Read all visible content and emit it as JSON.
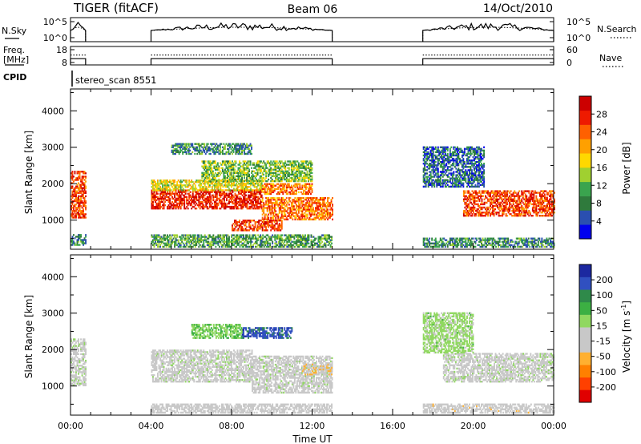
{
  "header": {
    "title": "TIGER (fitACF)",
    "beam": "Beam 06",
    "date": "14/Oct/2010"
  },
  "labels": {
    "nsky": "N.Sky",
    "nsearch": "N.Search",
    "freq_line1": "Freq.",
    "freq_line2": "[MHz]",
    "nave": "Nave",
    "cpid": "CPID",
    "cpid_value": "stereo_scan 8551",
    "slant_range": "Slant Range [km]",
    "power": "Power [dB]",
    "velocity_main": "Velocity [m s",
    "velocity_exp": "-1",
    "velocity_close": "]",
    "time_ut": "Time UT"
  },
  "colors": {
    "power_scale": [
      "#0000ee",
      "#2a4fb0",
      "#2f7a3c",
      "#3aa44e",
      "#a0d030",
      "#ffd800",
      "#ffa000",
      "#ff6000",
      "#ee1a00",
      "#cc0000"
    ],
    "velocity_scale": [
      "#e00000",
      "#ff4000",
      "#ff8000",
      "#ffb030",
      "#c8c8c8",
      "#c8c8c8",
      "#90d860",
      "#3cb043",
      "#2f8a4a",
      "#3050c0",
      "#1c28a0"
    ],
    "ground_scatter": "#c8c8c8"
  },
  "chart_data": [
    {
      "type": "line",
      "panel": "noise",
      "left_axis": {
        "ticks": [
          "10^5",
          "10^0"
        ]
      },
      "right_axis": {
        "ticks": [
          "10^5",
          "10^0"
        ]
      },
      "series": [
        {
          "name": "N.Sky",
          "style": "solid",
          "segments": [
            {
              "x": [
                0.0,
                0.75
              ],
              "level": "high"
            },
            {
              "x": [
                4.0,
                13.0
              ],
              "level": "high"
            },
            {
              "x": [
                17.5,
                24.0
              ],
              "level": "high"
            }
          ]
        },
        {
          "name": "N.Search",
          "style": "dotted",
          "segments": [
            {
              "x": [
                0.0,
                0.75
              ],
              "level": "high"
            },
            {
              "x": [
                4.0,
                13.0
              ],
              "level": "high"
            },
            {
              "x": [
                17.5,
                24.0
              ],
              "level": "high"
            }
          ]
        }
      ]
    },
    {
      "type": "line",
      "panel": "frequency",
      "left_axis": {
        "ticks": [
          "18",
          "8"
        ]
      },
      "right_axis": {
        "ticks": [
          "60",
          "0"
        ]
      },
      "series": [
        {
          "name": "Freq.",
          "style": "solid",
          "value": 11,
          "segments": [
            [
              0.0,
              0.75
            ],
            [
              4.0,
              13.0
            ],
            [
              17.5,
              24.0
            ]
          ]
        },
        {
          "name": "Nave",
          "style": "dotted",
          "value": 35,
          "segments": [
            [
              0.0,
              0.75
            ],
            [
              4.0,
              13.0
            ],
            [
              17.5,
              24.0
            ]
          ]
        }
      ]
    },
    {
      "type": "heatmap",
      "panel": "power",
      "ylabel": "Slant Range [km]",
      "yticks": [
        1000,
        2000,
        3000,
        4000
      ],
      "ylim": [
        200,
        4600
      ],
      "xlim": [
        0,
        24
      ],
      "colorbar": {
        "label": "Power [dB]",
        "ticks": [
          "28",
          "24",
          "20",
          "16",
          "12",
          "8",
          "4"
        ],
        "range": [
          0,
          30
        ]
      },
      "regions": [
        {
          "t": [
            0.0,
            0.75
          ],
          "r": [
            1050,
            2350
          ],
          "power": 24
        },
        {
          "t": [
            0.0,
            0.75
          ],
          "r": [
            300,
            600
          ],
          "power": 8
        },
        {
          "t": [
            4.0,
            9.5
          ],
          "r": [
            1300,
            1800
          ],
          "power": 26
        },
        {
          "t": [
            4.0,
            9.5
          ],
          "r": [
            1800,
            2100
          ],
          "power": 16
        },
        {
          "t": [
            9.5,
            13.0
          ],
          "r": [
            1000,
            1600
          ],
          "power": 22
        },
        {
          "t": [
            9.5,
            12.0
          ],
          "r": [
            1700,
            2000
          ],
          "power": 22
        },
        {
          "t": [
            6.5,
            12.0
          ],
          "r": [
            2050,
            2600
          ],
          "power": 12
        },
        {
          "t": [
            8.0,
            10.5
          ],
          "r": [
            700,
            1000
          ],
          "power": 24
        },
        {
          "t": [
            5.0,
            9.0
          ],
          "r": [
            2800,
            3100
          ],
          "power": 8
        },
        {
          "t": [
            4.0,
            13.0
          ],
          "r": [
            250,
            600
          ],
          "power": 10
        },
        {
          "t": [
            19.5,
            24.0
          ],
          "r": [
            1100,
            1800
          ],
          "power": 24
        },
        {
          "t": [
            17.5,
            20.5
          ],
          "r": [
            1900,
            3000
          ],
          "power": 6
        },
        {
          "t": [
            17.5,
            24.0
          ],
          "r": [
            250,
            500
          ],
          "power": 8
        }
      ]
    },
    {
      "type": "heatmap",
      "panel": "velocity",
      "ylabel": "Slant Range [km]",
      "yticks": [
        1000,
        2000,
        3000,
        4000
      ],
      "ylim": [
        200,
        4600
      ],
      "xlim": [
        0,
        24
      ],
      "xticks": [
        "00:00",
        "04:00",
        "08:00",
        "12:00",
        "16:00",
        "20:00",
        "00:00"
      ],
      "xlabel": "Time UT",
      "colorbar": {
        "label": "Velocity [m s-1]",
        "ticks": [
          "200",
          "100",
          "50",
          "15",
          "-15",
          "-50",
          "-100",
          "-200"
        ],
        "range": [
          -250,
          250
        ]
      },
      "regions": [
        {
          "t": [
            0.0,
            0.75
          ],
          "r": [
            1000,
            2300
          ],
          "velocity": 0
        },
        {
          "t": [
            4.0,
            9.0
          ],
          "r": [
            1100,
            2000
          ],
          "velocity": 0
        },
        {
          "t": [
            9.0,
            13.0
          ],
          "r": [
            800,
            1800
          ],
          "velocity": 0
        },
        {
          "t": [
            8.5,
            11.0
          ],
          "r": [
            2300,
            2600
          ],
          "velocity": 180
        },
        {
          "t": [
            6.0,
            8.5
          ],
          "r": [
            2300,
            2700
          ],
          "velocity": 60
        },
        {
          "t": [
            11.5,
            13.0
          ],
          "r": [
            1300,
            1600
          ],
          "velocity": -60
        },
        {
          "t": [
            4.0,
            13.0
          ],
          "r": [
            250,
            500
          ],
          "velocity": -30
        },
        {
          "t": [
            18.5,
            24.0
          ],
          "r": [
            1100,
            1900
          ],
          "velocity": 0
        },
        {
          "t": [
            17.5,
            20.0
          ],
          "r": [
            1900,
            3000
          ],
          "velocity": 40
        },
        {
          "t": [
            17.5,
            24.0
          ],
          "r": [
            250,
            500
          ],
          "velocity": -40
        }
      ]
    }
  ]
}
